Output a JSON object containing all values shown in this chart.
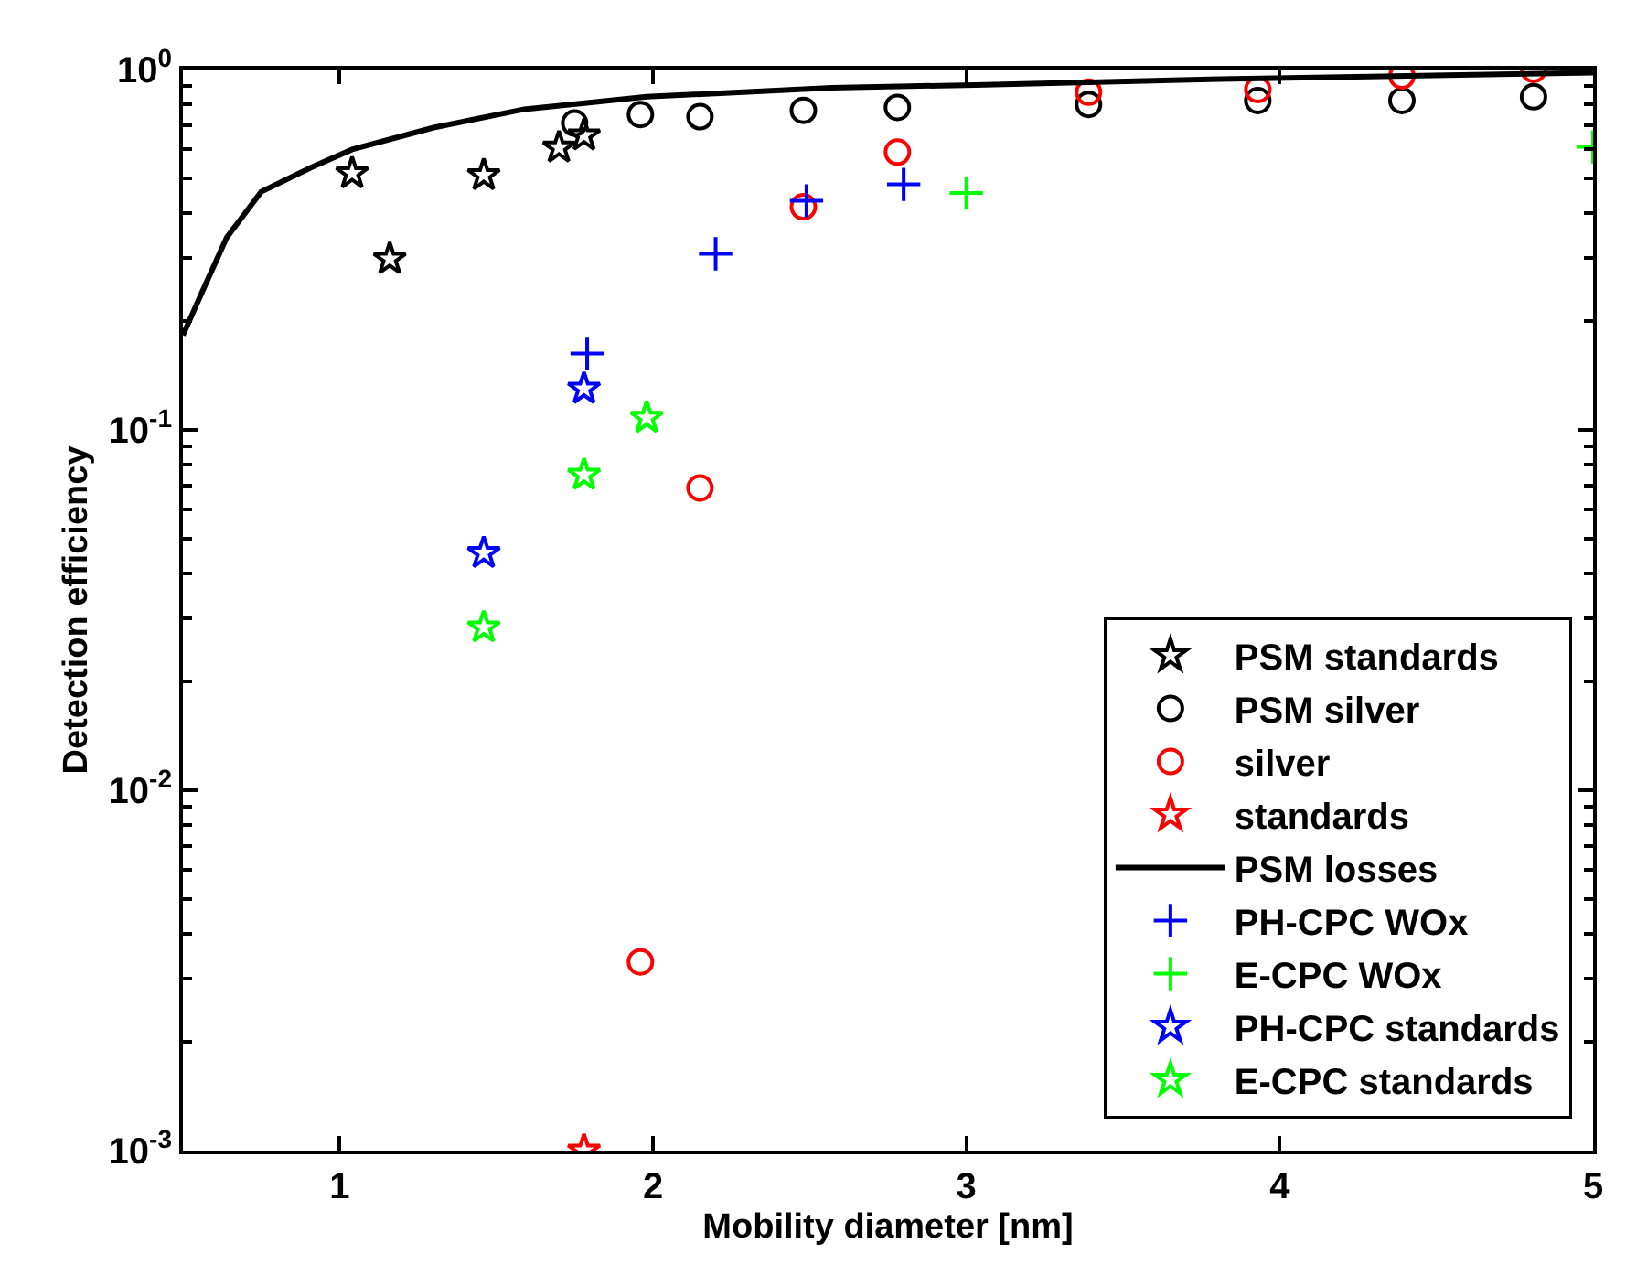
{
  "chart_data": {
    "type": "scatter",
    "xlabel": "Mobility diameter [nm]",
    "ylabel": "Detection efficiency",
    "log": "y",
    "legend": "bottom right",
    "xlim": [
      0.5,
      5
    ],
    "xticks": [
      1,
      2,
      3,
      4,
      5
    ],
    "ylim": [
      0.001,
      1
    ],
    "yticks": [
      {
        "value": 0.001,
        "label": "10$^{-3}$"
      },
      {
        "value": 0.01,
        "label": "10$^{-2}$"
      },
      {
        "value": 0.1,
        "label": "10$^{-1}$"
      },
      {
        "value": 1,
        "label": "10$^{0}$"
      }
    ],
    "series": [
      {
        "name": "PSM standards",
        "color": "#000000",
        "marker": "star",
        "x": [
          1.04,
          1.16,
          1.46,
          1.7,
          1.78
        ],
        "values": [
          0.515,
          0.298,
          0.509,
          0.607,
          0.656
        ]
      },
      {
        "name": "PSM silver",
        "color": "#000000",
        "marker": "circle",
        "x": [
          1.75,
          1.96,
          2.15,
          2.48,
          2.78,
          3.39,
          3.93,
          4.39,
          4.81
        ],
        "values": [
          0.71,
          0.75,
          0.74,
          0.77,
          0.785,
          0.8,
          0.82,
          0.82,
          0.84
        ]
      },
      {
        "name": "silver",
        "color": "#ff0000",
        "marker": "circle",
        "x": [
          1.96,
          2.15,
          2.48,
          2.78,
          3.39,
          3.93,
          4.39,
          4.81
        ],
        "values": [
          0.00334,
          0.069,
          0.416,
          0.59,
          0.865,
          0.88,
          0.96,
          1.0
        ]
      },
      {
        "name": "standards",
        "color": "#ff0000",
        "marker": "star",
        "x": [
          1.78
        ],
        "values": [
          0.001
        ]
      },
      {
        "name": "PSM losses",
        "type": "line",
        "color": "#000000",
        "marker": "none",
        "line_style": "solid",
        "x": [
          0.5,
          0.56,
          0.64,
          0.75,
          0.91,
          1.04,
          1.3,
          1.59,
          1.98,
          2.57,
          3.03,
          3.81,
          5.0
        ],
        "values": [
          0.183,
          0.24,
          0.342,
          0.458,
          0.535,
          0.6,
          0.69,
          0.776,
          0.84,
          0.89,
          0.906,
          0.94,
          0.98
        ]
      },
      {
        "name": "PH-CPC WOx",
        "color": "#0000ff",
        "marker": "cross",
        "x": [
          1.79,
          2.2,
          2.49,
          2.8
        ],
        "values": [
          0.163,
          0.308,
          0.432,
          0.48
        ]
      },
      {
        "name": "E-CPC WOx",
        "color": "#00ff00",
        "marker": "cross",
        "x": [
          3.0,
          5.0
        ],
        "values": [
          0.454,
          0.61
        ]
      },
      {
        "name": "PH-CPC standards",
        "color": "#0000ff",
        "marker": "star",
        "x": [
          1.46,
          1.78
        ],
        "values": [
          0.0455,
          0.13
        ]
      },
      {
        "name": "E-CPC standards",
        "color": "#00ff00",
        "marker": "star",
        "x": [
          1.46,
          1.78,
          1.98
        ],
        "values": [
          0.0283,
          0.075,
          0.108
        ]
      }
    ]
  }
}
